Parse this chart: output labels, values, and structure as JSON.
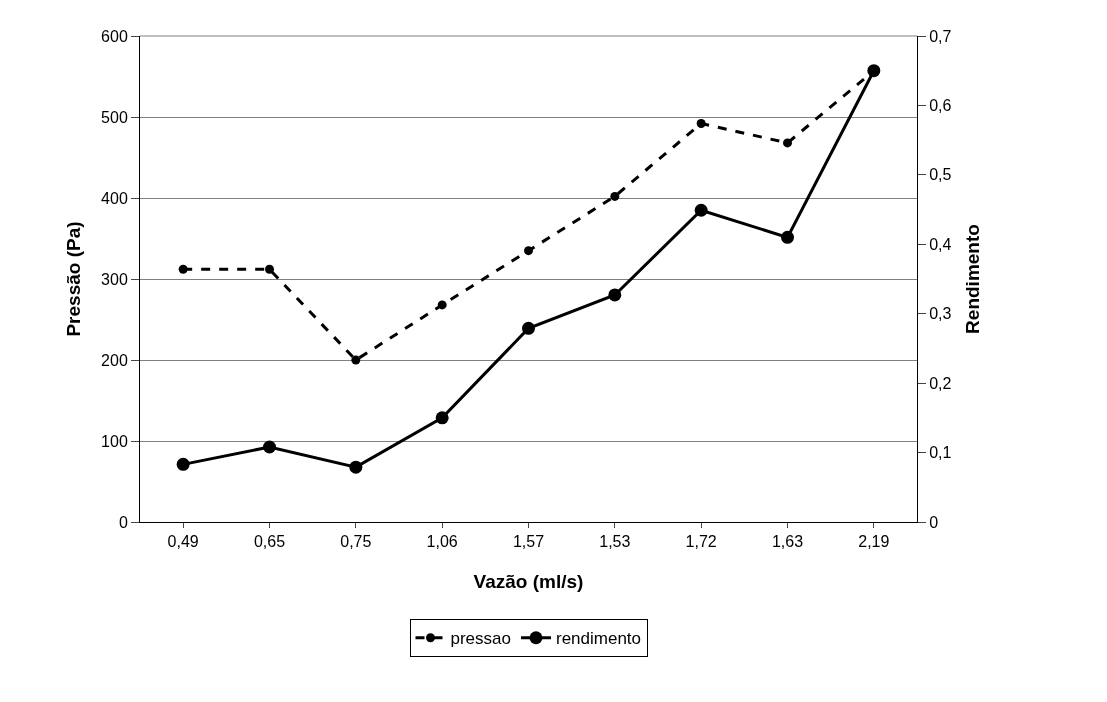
{
  "chart_data": {
    "type": "line",
    "xlabel": "Vazão (ml/s)",
    "ylabel": "Pressão (Pa)",
    "y2label": "Rendimento",
    "categories": [
      "0,49",
      "0,65",
      "0,75",
      "1,06",
      "1,57",
      "1,53",
      "1,72",
      "1,63",
      "2,19"
    ],
    "series": [
      {
        "name": "pressao",
        "color": "#000000",
        "line_style": "dashed",
        "values": [
          312,
          312,
          200,
          268,
          335,
          402,
          492,
          468,
          557
        ]
      },
      {
        "name": "rendimento",
        "color": "#000000",
        "line_style": "solid",
        "axis": "y2",
        "values": [
          0.083,
          0.108,
          0.079,
          0.15,
          0.279,
          0.327,
          0.449,
          0.41,
          0.65
        ]
      }
    ],
    "ylim": [
      0,
      600
    ],
    "yticks": [
      0,
      100,
      200,
      300,
      400,
      500,
      600
    ],
    "y2lim": [
      0,
      0.7
    ],
    "y2ticks": [
      0,
      {
        "value": 0.1,
        "label": "0,1"
      },
      {
        "value": 0.2,
        "label": "0,2"
      },
      {
        "value": 0.3,
        "label": "0,3"
      },
      {
        "value": 0.4,
        "label": "0,4"
      },
      {
        "value": 0.5,
        "label": "0,5"
      },
      {
        "value": 0.6,
        "label": "0,6"
      },
      {
        "value": 0.7,
        "label": "0,7"
      }
    ],
    "grid": "y",
    "legend": "bottom",
    "marker": "circle"
  }
}
